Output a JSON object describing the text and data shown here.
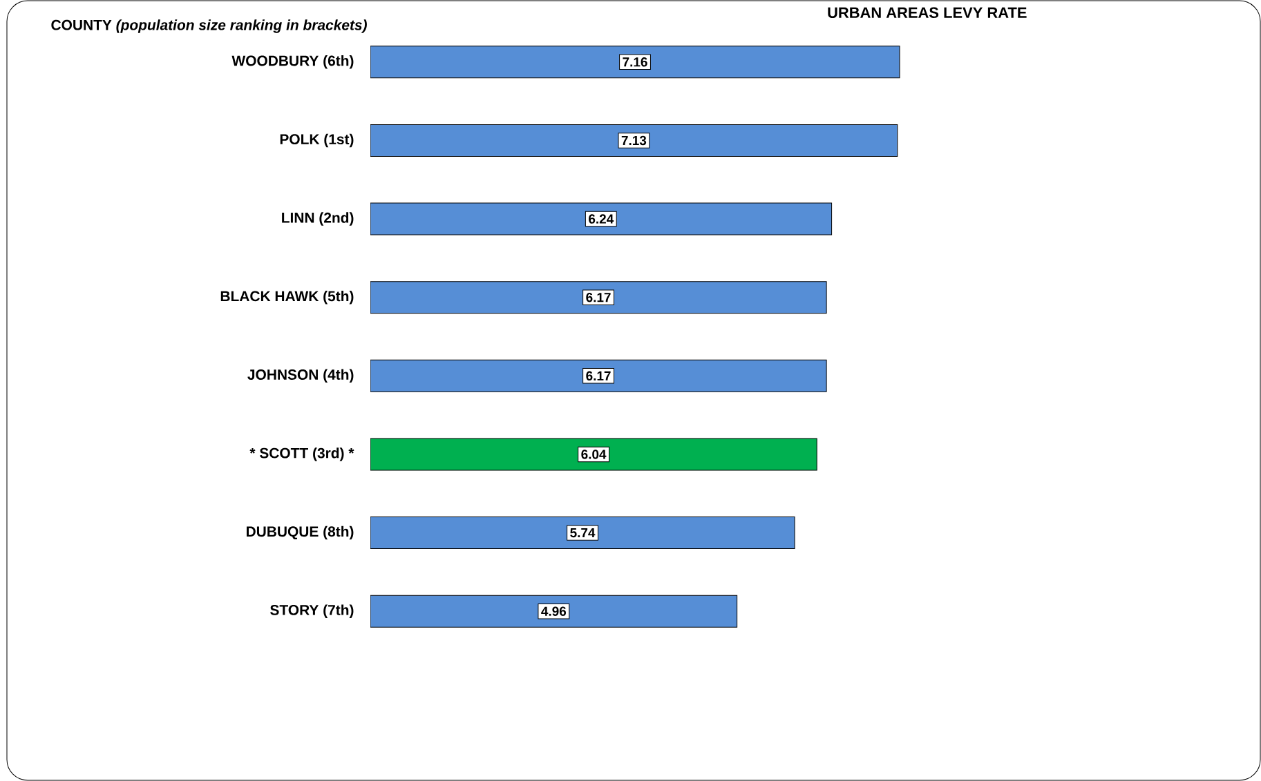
{
  "chart_data": {
    "type": "bar",
    "orientation": "horizontal",
    "title": "URBAN AREAS LEVY RATE",
    "annotations": [
      "COUNTY *(population size ranking in brackets)*"
    ],
    "categories": [
      "WOODBURY (6th)",
      "POLK (1st)",
      "LINN (2nd)",
      "BLACK HAWK (5th)",
      "JOHNSON (4th)",
      "*** SCOTT (3rd) ***",
      "DUBUQUE (8th)",
      "STORY (7th)"
    ],
    "values": [
      7.16,
      7.13,
      6.24,
      6.17,
      6.17,
      6.04,
      5.74,
      4.96
    ],
    "colors": [
      "#568ed6",
      "#568ed6",
      "#568ed6",
      "#568ed6",
      "#568ed6",
      "#00b050",
      "#568ed6",
      "#568ed6"
    ],
    "data_labels": true,
    "tick_labels": "y"
  }
}
